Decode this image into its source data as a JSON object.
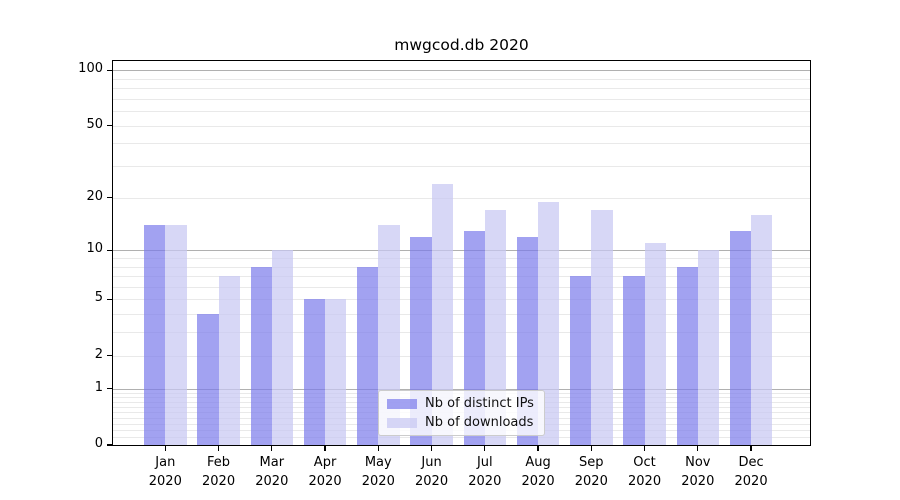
{
  "title": "mwgcod.db 2020",
  "chart_data": {
    "type": "bar",
    "title": "mwgcod.db 2020",
    "yscale": "log-like: position proportional to log10(value+1)",
    "ylim": [
      0,
      112
    ],
    "grid": "on",
    "legend_position": "lower center",
    "categories": [
      "Jan 2020",
      "Feb 2020",
      "Mar 2020",
      "Apr 2020",
      "May 2020",
      "Jun 2020",
      "Jul 2020",
      "Aug 2020",
      "Sep 2020",
      "Oct 2020",
      "Nov 2020",
      "Dec 2020"
    ],
    "x_categories": [
      {
        "month": "Jan",
        "year": "2020"
      },
      {
        "month": "Feb",
        "year": "2020"
      },
      {
        "month": "Mar",
        "year": "2020"
      },
      {
        "month": "Apr",
        "year": "2020"
      },
      {
        "month": "May",
        "year": "2020"
      },
      {
        "month": "Jun",
        "year": "2020"
      },
      {
        "month": "Jul",
        "year": "2020"
      },
      {
        "month": "Aug",
        "year": "2020"
      },
      {
        "month": "Sep",
        "year": "2020"
      },
      {
        "month": "Oct",
        "year": "2020"
      },
      {
        "month": "Nov",
        "year": "2020"
      },
      {
        "month": "Dec",
        "year": "2020"
      }
    ],
    "series": [
      {
        "name": "Nb of distinct IPs",
        "color": "#a4a4f0",
        "fill_rgba": "rgba(123,123,235,0.70)",
        "values": [
          14,
          4,
          8,
          5,
          8,
          12,
          13,
          12,
          7,
          7,
          8,
          13
        ]
      },
      {
        "name": "Nb of downloads",
        "color": "#d8d8f7",
        "fill_rgba": "rgba(200,200,243,0.72)",
        "values": [
          14,
          7,
          10,
          5,
          14,
          24,
          17,
          19,
          17,
          11,
          10,
          16
        ]
      }
    ],
    "yticks": [
      {
        "v": 100,
        "label": "100"
      },
      {
        "v": 50,
        "label": "50"
      },
      {
        "v": 20,
        "label": "20"
      },
      {
        "v": 10,
        "label": "10"
      },
      {
        "v": 5,
        "label": "5"
      },
      {
        "v": 2,
        "label": "2"
      },
      {
        "v": 1,
        "label": "1"
      },
      {
        "v": 0,
        "label": "0"
      }
    ],
    "major_gridlines": [
      1,
      10,
      100
    ],
    "minor_gridlines": [
      0.1,
      0.2,
      0.3,
      0.4,
      0.5,
      0.6,
      0.7,
      0.8,
      0.9,
      2,
      3,
      4,
      5,
      6,
      7,
      8,
      9,
      20,
      30,
      40,
      50,
      60,
      70,
      80,
      90
    ]
  },
  "colors": {
    "major_grid": "#b0b0b0",
    "minor_grid": "#e9e9e9",
    "spine": "#000000",
    "background": "#ffffff"
  }
}
